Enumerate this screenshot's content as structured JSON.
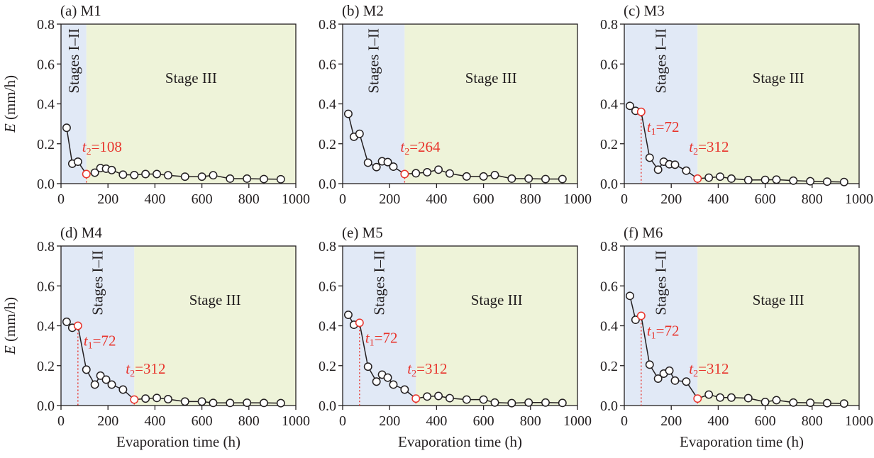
{
  "colors": {
    "stage12_bg": "#e1e9f6",
    "stage3_bg": "#eef3d9",
    "marker_highlight": "#e8342c",
    "line": "#231f20"
  },
  "chart_data": [
    {
      "type": "line",
      "title": "(a) M1",
      "xlabel": "Evaporation time (h)",
      "ylabel_var": "E",
      "ylabel_unit": " (mm/h)",
      "xlim": [
        0,
        1000
      ],
      "ylim": [
        0,
        0.8
      ],
      "xticks": [
        "0",
        "200",
        "400",
        "600",
        "800",
        "1000"
      ],
      "yticks": [
        "0.0",
        "0.2",
        "0.4",
        "0.6",
        "0.8"
      ],
      "stage12_label": "Stages I–II",
      "stage3_label": "Stage III",
      "t1": null,
      "t2": 108,
      "t2_label": "=108",
      "x": [
        24,
        48,
        72,
        108,
        144,
        168,
        192,
        216,
        264,
        312,
        360,
        408,
        456,
        528,
        600,
        648,
        720,
        792,
        864,
        936
      ],
      "y": [
        0.28,
        0.1,
        0.11,
        0.048,
        0.055,
        0.078,
        0.075,
        0.068,
        0.045,
        0.043,
        0.048,
        0.048,
        0.042,
        0.035,
        0.035,
        0.042,
        0.025,
        0.025,
        0.023,
        0.022
      ]
    },
    {
      "type": "line",
      "title": "(b) M2",
      "xlabel": "Evaporation time (h)",
      "ylabel_var": "E",
      "ylabel_unit": " (mm/h)",
      "xlim": [
        0,
        1000
      ],
      "ylim": [
        0,
        0.8
      ],
      "xticks": [
        "0",
        "200",
        "400",
        "600",
        "800",
        "1000"
      ],
      "yticks": [
        "0.0",
        "0.2",
        "0.4",
        "0.6",
        "0.8"
      ],
      "stage12_label": "Stages I–II",
      "stage3_label": "Stage III",
      "t1": null,
      "t2": 264,
      "t2_label": "=264",
      "x": [
        24,
        48,
        72,
        108,
        144,
        168,
        192,
        216,
        264,
        312,
        360,
        408,
        456,
        528,
        600,
        648,
        720,
        792,
        864,
        936
      ],
      "y": [
        0.35,
        0.235,
        0.25,
        0.105,
        0.083,
        0.112,
        0.108,
        0.085,
        0.048,
        0.052,
        0.057,
        0.07,
        0.051,
        0.036,
        0.036,
        0.043,
        0.025,
        0.025,
        0.023,
        0.023
      ]
    },
    {
      "type": "line",
      "title": "(c) M3",
      "xlabel": "Evaporation time (h)",
      "ylabel_var": "E",
      "ylabel_unit": " (mm/h)",
      "xlim": [
        0,
        1000
      ],
      "ylim": [
        0,
        0.8
      ],
      "xticks": [
        "0",
        "200",
        "400",
        "600",
        "800",
        "1000"
      ],
      "yticks": [
        "0.0",
        "0.2",
        "0.4",
        "0.6",
        "0.8"
      ],
      "stage12_label": "Stages I–II",
      "stage3_label": "Stage III",
      "t1": 72,
      "t1_label": "=72",
      "t2": 312,
      "t2_label": "=312",
      "x": [
        24,
        48,
        72,
        108,
        144,
        168,
        192,
        216,
        264,
        312,
        360,
        408,
        456,
        528,
        600,
        648,
        720,
        792,
        864,
        936
      ],
      "y": [
        0.39,
        0.365,
        0.36,
        0.13,
        0.07,
        0.11,
        0.097,
        0.095,
        0.065,
        0.025,
        0.03,
        0.035,
        0.025,
        0.018,
        0.019,
        0.02,
        0.015,
        0.012,
        0.01,
        0.008
      ]
    },
    {
      "type": "line",
      "title": "(d) M4",
      "xlabel": "Evaporation time (h)",
      "ylabel_var": "E",
      "ylabel_unit": " (mm/h)",
      "xlim": [
        0,
        1000
      ],
      "ylim": [
        0,
        0.8
      ],
      "xticks": [
        "0",
        "200",
        "400",
        "600",
        "800",
        "1000"
      ],
      "yticks": [
        "0.0",
        "0.2",
        "0.4",
        "0.6",
        "0.8"
      ],
      "stage12_label": "Stages I–II",
      "stage3_label": "Stage III",
      "t1": 72,
      "t1_label": "=72",
      "t2": 312,
      "t2_label": "=312",
      "x": [
        24,
        48,
        72,
        108,
        144,
        168,
        192,
        216,
        264,
        312,
        360,
        408,
        456,
        528,
        600,
        648,
        720,
        792,
        864,
        936
      ],
      "y": [
        0.42,
        0.39,
        0.4,
        0.18,
        0.105,
        0.15,
        0.13,
        0.105,
        0.08,
        0.03,
        0.035,
        0.038,
        0.032,
        0.02,
        0.02,
        0.013,
        0.013,
        0.014,
        0.013,
        0.012
      ]
    },
    {
      "type": "line",
      "title": "(e) M5",
      "xlabel": "Evaporation time (h)",
      "ylabel_var": "E",
      "ylabel_unit": " (mm/h)",
      "xlim": [
        0,
        1000
      ],
      "ylim": [
        0,
        0.8
      ],
      "xticks": [
        "0",
        "200",
        "400",
        "600",
        "800",
        "1000"
      ],
      "yticks": [
        "0.0",
        "0.2",
        "0.4",
        "0.6",
        "0.8"
      ],
      "stage12_label": "Stages I–II",
      "stage3_label": "Stage III",
      "t1": 72,
      "t1_label": "=72",
      "t2": 312,
      "t2_label": "=312",
      "x": [
        24,
        48,
        72,
        108,
        144,
        168,
        192,
        216,
        264,
        312,
        360,
        408,
        456,
        528,
        600,
        648,
        720,
        792,
        864,
        936
      ],
      "y": [
        0.455,
        0.405,
        0.415,
        0.195,
        0.12,
        0.155,
        0.14,
        0.105,
        0.08,
        0.035,
        0.045,
        0.048,
        0.037,
        0.03,
        0.03,
        0.015,
        0.012,
        0.015,
        0.015,
        0.013
      ]
    },
    {
      "type": "line",
      "title": "(f) M6",
      "xlabel": "Evaporation time (h)",
      "ylabel_var": "E",
      "ylabel_unit": " (mm/h)",
      "xlim": [
        0,
        1000
      ],
      "ylim": [
        0,
        0.8
      ],
      "xticks": [
        "0",
        "200",
        "400",
        "600",
        "800",
        "1000"
      ],
      "yticks": [
        "0.0",
        "0.2",
        "0.4",
        "0.6",
        "0.8"
      ],
      "stage12_label": "Stages I–II",
      "stage3_label": "Stage III",
      "t1": 72,
      "t1_label": "=72",
      "t2": 312,
      "t2_label": "=312",
      "x": [
        24,
        48,
        72,
        108,
        144,
        168,
        192,
        216,
        264,
        312,
        360,
        408,
        456,
        528,
        600,
        648,
        720,
        792,
        864,
        936
      ],
      "y": [
        0.55,
        0.43,
        0.45,
        0.205,
        0.135,
        0.16,
        0.175,
        0.125,
        0.12,
        0.035,
        0.055,
        0.04,
        0.04,
        0.037,
        0.018,
        0.027,
        0.015,
        0.014,
        0.012,
        0.01
      ]
    }
  ]
}
